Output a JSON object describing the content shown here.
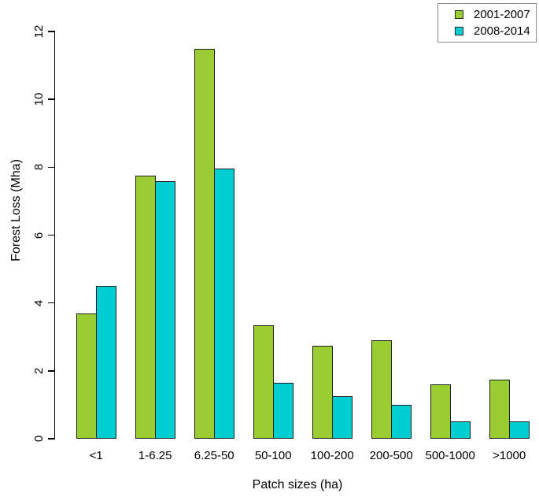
{
  "chart_data": {
    "type": "bar",
    "title": "",
    "xlabel": "Patch sizes (ha)",
    "ylabel": "Forest Loss (Mha)",
    "categories": [
      "<1",
      "1-6.25",
      "6.25-50",
      "50-100",
      "100-200",
      "200-500",
      "500-1000",
      ">1000"
    ],
    "series": [
      {
        "name": "2001-2007",
        "color": "#9ACD32",
        "values": [
          3.7,
          7.75,
          11.5,
          3.35,
          2.75,
          2.9,
          1.6,
          1.75
        ]
      },
      {
        "name": "2008-2014",
        "color": "#00CED1",
        "values": [
          4.5,
          7.6,
          7.95,
          1.65,
          1.25,
          1.0,
          0.5,
          0.5
        ]
      }
    ],
    "ylim": [
      0,
      12
    ],
    "yticks": [
      0,
      2,
      4,
      6,
      8,
      10,
      12
    ],
    "grid": false,
    "legend_position": "top-right",
    "bar_border_color": "#1f1f1f",
    "axis_color": "#000000",
    "legend_border_color": "#888888"
  }
}
